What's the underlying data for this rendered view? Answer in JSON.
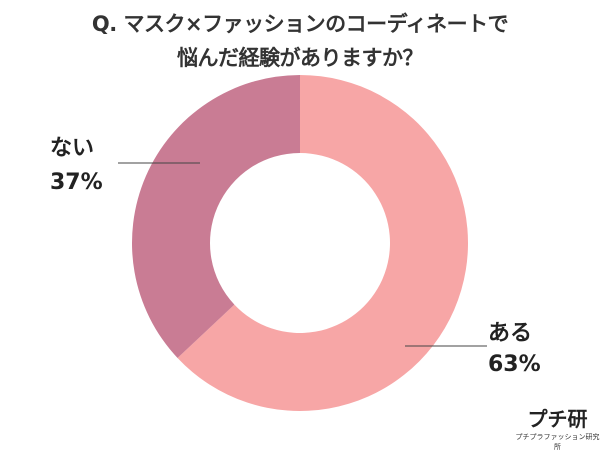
{
  "chart_data": {
    "type": "pie",
    "style": "donut",
    "title": "Q. マスク×ファッションのコーディネートで",
    "subtitle": "悩んだ経験がありますか？",
    "slices": [
      {
        "label": "ある",
        "value": 63,
        "value_label": "63%",
        "color": "#F7A6A6"
      },
      {
        "label": "ない",
        "value": 37,
        "value_label": "37%",
        "color": "#C97C94"
      }
    ]
  },
  "logo": {
    "main": "プチ研",
    "sub": "プチプラファッション研究所"
  }
}
